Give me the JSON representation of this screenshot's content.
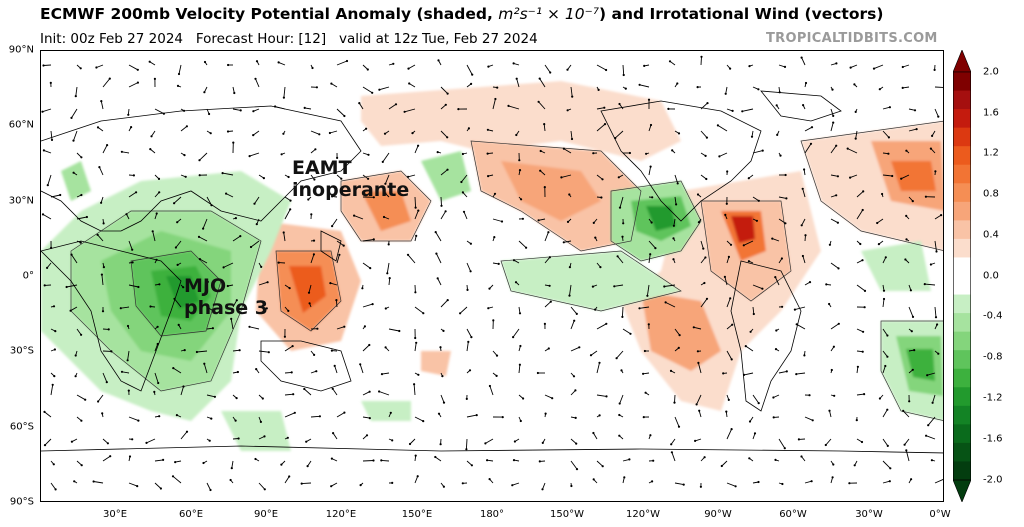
{
  "header": {
    "title_prefix": "ECMWF 200mb Velocity Potential Anomaly (shaded, ",
    "title_units": "m²s⁻¹ × 10⁻⁷",
    "title_suffix": ") and Irrotational Wind (vectors)",
    "init": "Init: 00z Feb 27 2024",
    "forecast_hour": "Forecast Hour: [12]",
    "valid": "valid at 12z Tue, Feb 27 2024",
    "credit": "TROPICALTIDBITS.COM"
  },
  "map": {
    "lat_labels": [
      "90°N",
      "60°N",
      "30°N",
      "0°",
      "30°S",
      "60°S",
      "90°S"
    ],
    "lon_labels": [
      "30°E",
      "60°E",
      "90°E",
      "120°E",
      "150°E",
      "180°",
      "150°W",
      "120°W",
      "90°W",
      "60°W",
      "30°W",
      "0°W"
    ],
    "annotations": [
      {
        "id": "eamt",
        "lines": [
          "EAMT",
          "inoperante"
        ]
      },
      {
        "id": "mjo",
        "lines": [
          "MJO",
          "phase 3"
        ]
      }
    ]
  },
  "colorbar": {
    "labels": [
      "2.0",
      "1.6",
      "1.2",
      "0.8",
      "0.4",
      "0.0",
      "-0.4",
      "-0.8",
      "-1.2",
      "-1.6",
      "-2.0"
    ],
    "levels": [
      2.0,
      1.8,
      1.6,
      1.4,
      1.2,
      1.0,
      0.8,
      0.6,
      0.4,
      0.2,
      -0.2,
      -0.4,
      -0.6,
      -0.8,
      -1.0,
      -1.2,
      -1.4,
      -1.6,
      -1.8,
      -2.0
    ],
    "colors_positive": [
      "#7f0000",
      "#a50f0f",
      "#c41b0e",
      "#dc3911",
      "#ec5b1d",
      "#f27434",
      "#f58e54",
      "#f7a579",
      "#f9c3a6",
      "#fbddcc"
    ],
    "colors_negative": [
      "#c7efc4",
      "#a6e39f",
      "#84d57c",
      "#5fc45c",
      "#3db13e",
      "#229a2d",
      "#138325",
      "#0a6b1c",
      "#065315",
      "#033d0f"
    ]
  },
  "legend_colors": {
    "positive": "#f27434",
    "negative": "#3db13e",
    "neutral": "#ffffff"
  }
}
